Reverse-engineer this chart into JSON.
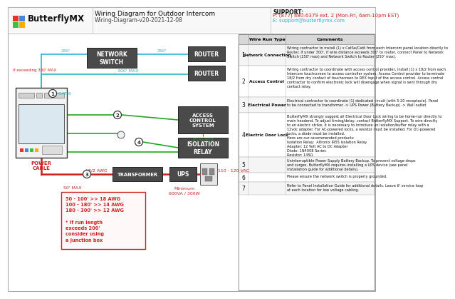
{
  "title": "Wiring Diagram for Outdoor Intercom",
  "subtitle": "Wiring-Diagram-v20-2021-12-08",
  "support_label": "SUPPORT:",
  "support_phone": "P: (877) 480-6379 ext. 2 (Mon-Fri, 6am-10pm EST)",
  "support_email": "E: support@butterflymx.com",
  "logo_text": "ButterflyMX",
  "bg_color": "#ffffff",
  "dark_box_color": "#4a4a4a",
  "cyan_color": "#29b6d0",
  "green_color": "#22a822",
  "red_color": "#cc2222",
  "logo_colors": [
    "#e83030",
    "#4488dd",
    "#44bb44",
    "#ffaa00"
  ],
  "rows": [
    {
      "num": "1",
      "type": "Network Connection",
      "comment": "Wiring contractor to install (1) x CatSe/Cat6 from each Intercom panel location directly to\nRouter. If under 300', if wire distance exceeds 300' to router, connect Panel to Network\nSwitch (250' max) and Network Switch to Router (250' max)."
    },
    {
      "num": "2",
      "type": "Access Control",
      "comment": "Wiring contractor to coordinate with access control provider, install (1) x 18/2 from each\nIntercom touchscreen to access controller system. Access Control provider to terminate\n18/2 from dry contact of touchscreen to REX Input of the access control. Access control\ncontractor to confirm electronic lock will disengage when signal is sent through dry\ncontact relay."
    },
    {
      "num": "3",
      "type": "Electrical Power",
      "comment": "Electrical contractor to coordinate (1) dedicated circuit (with 5-20 receptacle). Panel\nto be connected to transformer -> UPS Power (Battery Backup) -> Wall outlet"
    },
    {
      "num": "4",
      "type": "Electric Door Lock",
      "comment": "ButterflyMX strongly suggest all Electrical Door Lock wiring to be home-run directly to\nmain headend. To adjust timing/delay, contact ButterflyMX Support. To wire directly\nto an electric strike, it is necessary to introduce an isolation/buffer relay with a\n12vdc adapter. For AC-powered locks, a resistor must be installed. For DC-powered\nlocks, a diode must be installed.\nHere are our recommended products:\nIsolation Relay:  Altronix IR5S Isolation Relay\nAdapter: 12 Volt AC to DC Adapter\nDiode: 1N4008 Series\nResistor: 145Ω"
    },
    {
      "num": "5",
      "type": "",
      "comment": "Uninterruptible Power Supply Battery Backup. To prevent voltage drops\nand surges, ButterflyMX requires installing a UPS device (see panel\ninstallation guide for additional details)."
    },
    {
      "num": "6",
      "type": "",
      "comment": "Please ensure the network switch is properly grounded."
    },
    {
      "num": "7",
      "type": "",
      "comment": "Refer to Panel Installation Guide for additional details. Leave 6' service loop\nat each location for low voltage cabling."
    }
  ]
}
